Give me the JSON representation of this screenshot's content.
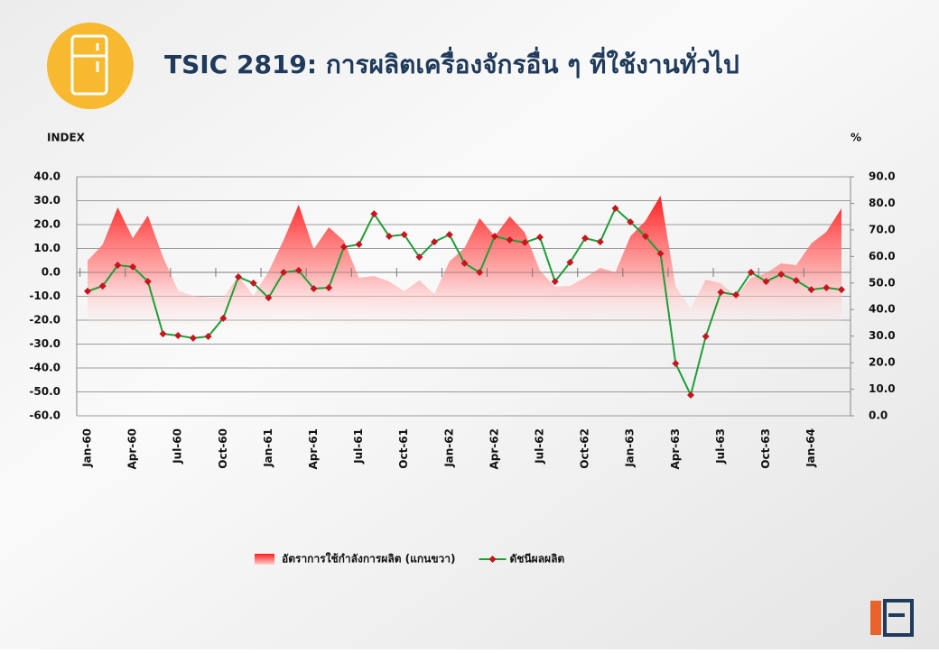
{
  "chart_data": {
    "type": "area-line",
    "title": "TSIC 2819: การผลิตเครื่องจักรอื่น ๆ ที่ใช้งานทั่วไป",
    "y_label": "INDEX",
    "y2_label": "%",
    "categories": [
      "Jan-60",
      null,
      null,
      "Apr-60",
      null,
      null,
      "Jul-60",
      null,
      null,
      "Oct-60",
      null,
      null,
      "Jan-61",
      null,
      null,
      "Apr-61",
      null,
      null,
      "Jul-61",
      null,
      null,
      "Oct-61",
      null,
      null,
      "Jan-62",
      null,
      null,
      "Apr-62",
      null,
      null,
      "Jul-62",
      null,
      null,
      "Oct-62",
      null,
      null,
      "Jan-63",
      null,
      null,
      "Apr-63",
      null,
      null,
      "Jul-63",
      null,
      null,
      "Oct-63",
      null,
      null,
      "Jan-64",
      null,
      null
    ],
    "series": [
      {
        "name": "อัตราการใช้กำลังการผลิต (แกนขวา)",
        "color": "#ff1a1a",
        "axis": "y2",
        "type": "area",
        "values": [
          58.4,
          64.5,
          78.5,
          66.9,
          75.4,
          59.8,
          47.2,
          45.2,
          44.5,
          44.5,
          52.6,
          45.2,
          54.3,
          66.2,
          79.5,
          62.8,
          71.0,
          65.9,
          52.0,
          52.6,
          50.6,
          46.9,
          51.0,
          45.9,
          58.1,
          63.2,
          74.4,
          67.6,
          75.1,
          69.0,
          54.7,
          48.6,
          48.9,
          52.0,
          55.7,
          54.0,
          67.6,
          73.4,
          82.9,
          48.6,
          40.4,
          51.3,
          49.9,
          45.2,
          52.0,
          53.7,
          57.4,
          56.7,
          64.9,
          69.3,
          78.1
        ]
      },
      {
        "name": "ดัชนีผลผลิต",
        "color": "#1f9e35",
        "marker_color": "#c8141e",
        "type": "line",
        "values": [
          -7.9,
          -5.7,
          3.0,
          2.3,
          -3.8,
          -25.7,
          -26.4,
          -27.5,
          -26.8,
          -19.2,
          -1.9,
          -4.5,
          -10.6,
          0,
          0.8,
          -6.8,
          -6.4,
          10.6,
          11.7,
          24.5,
          15.1,
          15.8,
          6.4,
          12.8,
          15.8,
          3.8,
          0,
          15.1,
          13.6,
          12.5,
          14.7,
          -3.8,
          4.2,
          14.3,
          12.8,
          26.8,
          21.1,
          15.1,
          7.9,
          -38.1,
          -51.3,
          -26.8,
          -8.3,
          -9.4,
          0,
          -3.8,
          -0.8,
          -3.4,
          -7.2,
          -6.4,
          -7.2
        ]
      }
    ],
    "ylim": [
      -60,
      40
    ],
    "yticks": [
      {
        "value": -60,
        "label": "-60.0"
      },
      {
        "value": -50,
        "label": "-50.0"
      },
      {
        "value": -40,
        "label": "-40.0"
      },
      {
        "value": -30,
        "label": "-30.0"
      },
      {
        "value": -20,
        "label": "-20.0"
      },
      {
        "value": -10,
        "label": "-10.0"
      },
      {
        "value": 0,
        "label": "0.0"
      },
      {
        "value": 10,
        "label": "10.0"
      },
      {
        "value": 20,
        "label": "20.0"
      },
      {
        "value": 30,
        "label": "30.0"
      },
      {
        "value": 40,
        "label": "40.0"
      }
    ],
    "y2lim": [
      0,
      90
    ],
    "y2ticks": [
      {
        "value": 0,
        "label": "0.0"
      },
      {
        "value": 10,
        "label": "10.0"
      },
      {
        "value": 20,
        "label": "20.0"
      },
      {
        "value": 30,
        "label": "30.0"
      },
      {
        "value": 40,
        "label": "40.0"
      },
      {
        "value": 50,
        "label": "50.0"
      },
      {
        "value": 60,
        "label": "60.0"
      },
      {
        "value": 70,
        "label": "70.0"
      },
      {
        "value": 80,
        "label": "80.0"
      },
      {
        "value": 90,
        "label": "90.0"
      }
    ],
    "grid": true,
    "legend": "bottom"
  }
}
